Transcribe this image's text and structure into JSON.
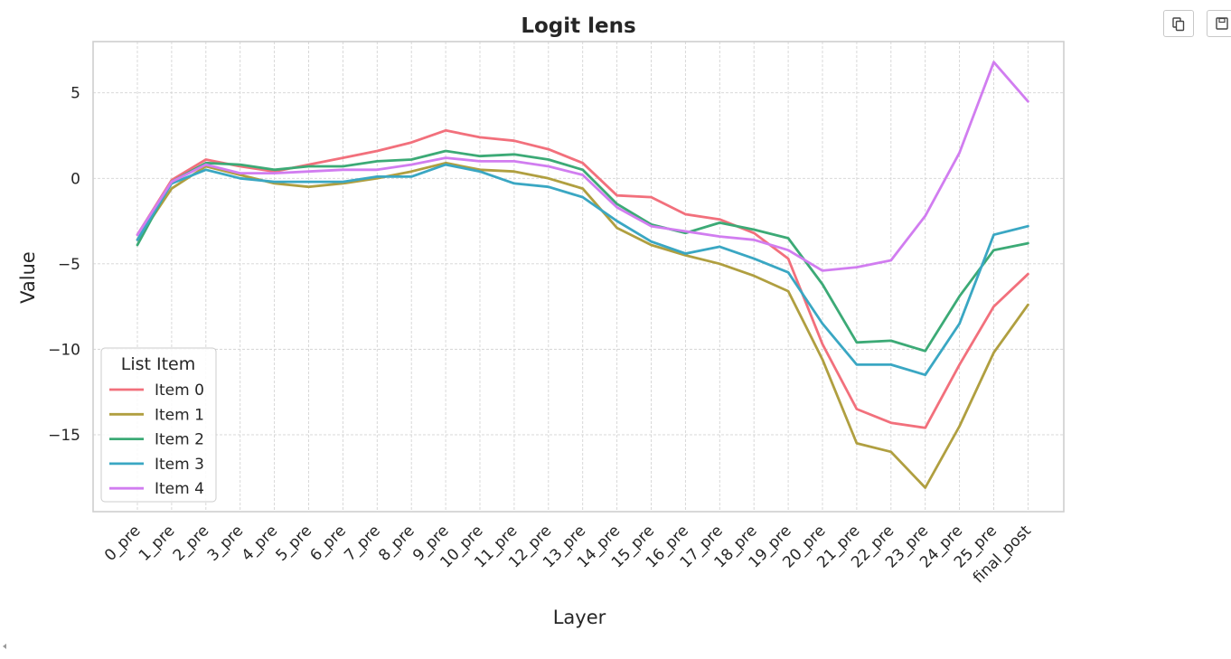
{
  "toolbar": {
    "copy_icon": "copy-icon",
    "save_icon": "save-icon"
  },
  "chart_data": {
    "type": "line",
    "title": "Logit lens",
    "xlabel": "Layer",
    "ylabel": "Value",
    "categories": [
      "0_pre",
      "1_pre",
      "2_pre",
      "3_pre",
      "4_pre",
      "5_pre",
      "6_pre",
      "7_pre",
      "8_pre",
      "9_pre",
      "10_pre",
      "11_pre",
      "12_pre",
      "13_pre",
      "14_pre",
      "15_pre",
      "16_pre",
      "17_pre",
      "18_pre",
      "19_pre",
      "20_pre",
      "21_pre",
      "22_pre",
      "23_pre",
      "24_pre",
      "25_pre",
      "final_post"
    ],
    "ylim": [
      -19.5,
      8.0
    ],
    "yticks": [
      5,
      0,
      -5,
      -10,
      -15
    ],
    "ytick_labels": [
      "5",
      "0",
      "−5",
      "−10",
      "−15"
    ],
    "grid": true,
    "legend": {
      "title": "List Item",
      "placement": "lower-left"
    },
    "series": [
      {
        "name": "Item 0",
        "color": "#f2707c",
        "values": [
          -3.3,
          -0.1,
          1.1,
          0.7,
          0.4,
          0.8,
          1.2,
          1.6,
          2.1,
          2.8,
          2.4,
          2.2,
          1.7,
          0.9,
          -1.0,
          -1.1,
          -2.1,
          -2.4,
          -3.2,
          -4.7,
          -9.7,
          -13.5,
          -14.3,
          -14.6,
          -10.9,
          -7.5,
          -5.6
        ]
      },
      {
        "name": "Item 1",
        "color": "#b09f40",
        "values": [
          -3.6,
          -0.6,
          0.7,
          0.2,
          -0.3,
          -0.5,
          -0.3,
          0.0,
          0.4,
          0.9,
          0.5,
          0.4,
          0.0,
          -0.6,
          -2.9,
          -3.9,
          -4.5,
          -5.0,
          -5.7,
          -6.6,
          -10.6,
          -15.5,
          -16.0,
          -18.1,
          -14.5,
          -10.2,
          -7.4
        ]
      },
      {
        "name": "Item 2",
        "color": "#3caa76",
        "values": [
          -3.9,
          -0.2,
          0.9,
          0.8,
          0.5,
          0.7,
          0.7,
          1.0,
          1.1,
          1.6,
          1.3,
          1.4,
          1.1,
          0.5,
          -1.5,
          -2.7,
          -3.2,
          -2.6,
          -3.0,
          -3.5,
          -6.2,
          -9.6,
          -9.5,
          -10.1,
          -6.9,
          -4.2,
          -3.8
        ]
      },
      {
        "name": "Item 3",
        "color": "#3aa7c3",
        "values": [
          -3.6,
          -0.3,
          0.5,
          0.0,
          -0.2,
          -0.2,
          -0.2,
          0.1,
          0.1,
          0.8,
          0.4,
          -0.3,
          -0.5,
          -1.1,
          -2.5,
          -3.7,
          -4.4,
          -4.0,
          -4.7,
          -5.5,
          -8.5,
          -10.9,
          -10.9,
          -11.5,
          -8.5,
          -3.3,
          -2.8
        ]
      },
      {
        "name": "Item 4",
        "color": "#d17df0",
        "values": [
          -3.3,
          -0.2,
          0.8,
          0.3,
          0.3,
          0.4,
          0.5,
          0.5,
          0.8,
          1.2,
          1.0,
          1.0,
          0.7,
          0.2,
          -1.7,
          -2.8,
          -3.1,
          -3.4,
          -3.6,
          -4.2,
          -5.4,
          -5.2,
          -4.8,
          -2.2,
          1.5,
          6.8,
          4.5
        ]
      }
    ]
  }
}
